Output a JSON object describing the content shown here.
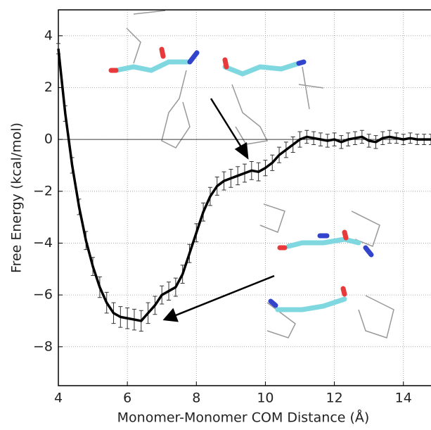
{
  "chart_data": {
    "type": "line",
    "xlabel": "Monomer-Monomer COM Distance (Å)",
    "ylabel": "Free Energy (kcal/mol)",
    "x": [
      4.0,
      4.2,
      4.4,
      4.6,
      4.8,
      5.0,
      5.2,
      5.4,
      5.6,
      5.8,
      6.0,
      6.2,
      6.4,
      6.6,
      6.8,
      7.0,
      7.2,
      7.4,
      7.6,
      7.8,
      8.0,
      8.2,
      8.4,
      8.6,
      8.8,
      9.0,
      9.2,
      9.4,
      9.6,
      9.8,
      10.0,
      10.2,
      10.4,
      10.6,
      10.8,
      11.0,
      11.2,
      11.4,
      11.6,
      11.8,
      12.0,
      12.2,
      12.4,
      12.6,
      12.8,
      13.0,
      13.2,
      13.4,
      13.6,
      13.8,
      14.0,
      14.2,
      14.4,
      14.6,
      14.8
    ],
    "values": [
      3.5,
      1.0,
      -1.0,
      -2.6,
      -3.9,
      -4.9,
      -5.7,
      -6.3,
      -6.7,
      -6.85,
      -6.9,
      -6.95,
      -7.0,
      -6.7,
      -6.4,
      -6.0,
      -5.85,
      -5.7,
      -5.2,
      -4.4,
      -3.6,
      -2.8,
      -2.2,
      -1.8,
      -1.6,
      -1.5,
      -1.4,
      -1.3,
      -1.2,
      -1.25,
      -1.1,
      -0.9,
      -0.6,
      -0.4,
      -0.2,
      0.0,
      0.1,
      0.05,
      0.0,
      -0.05,
      0.0,
      -0.1,
      0.0,
      0.05,
      0.1,
      -0.05,
      -0.1,
      0.05,
      0.1,
      0.05,
      0.0,
      0.05,
      0.0,
      0.0,
      0.0
    ],
    "errors": [
      0.2,
      0.3,
      0.3,
      0.3,
      0.35,
      0.35,
      0.4,
      0.4,
      0.4,
      0.4,
      0.4,
      0.4,
      0.4,
      0.4,
      0.35,
      0.35,
      0.35,
      0.35,
      0.35,
      0.35,
      0.35,
      0.35,
      0.35,
      0.35,
      0.35,
      0.35,
      0.35,
      0.35,
      0.35,
      0.35,
      0.3,
      0.3,
      0.3,
      0.3,
      0.3,
      0.3,
      0.25,
      0.25,
      0.25,
      0.25,
      0.25,
      0.25,
      0.25,
      0.25,
      0.25,
      0.25,
      0.25,
      0.25,
      0.25,
      0.2,
      0.2,
      0.2,
      0.2,
      0.2,
      0.2
    ],
    "color": "#000000",
    "xlim": [
      4,
      14.8
    ],
    "ylim": [
      -9.5,
      5
    ],
    "xticks": [
      4,
      6,
      8,
      10,
      12,
      14
    ],
    "yticks": [
      {
        "value": -8,
        "label": "−8"
      },
      {
        "value": -6,
        "label": "−6"
      },
      {
        "value": -4,
        "label": "−4"
      },
      {
        "value": -2,
        "label": "−2"
      },
      0,
      2,
      4
    ],
    "grid": true
  }
}
